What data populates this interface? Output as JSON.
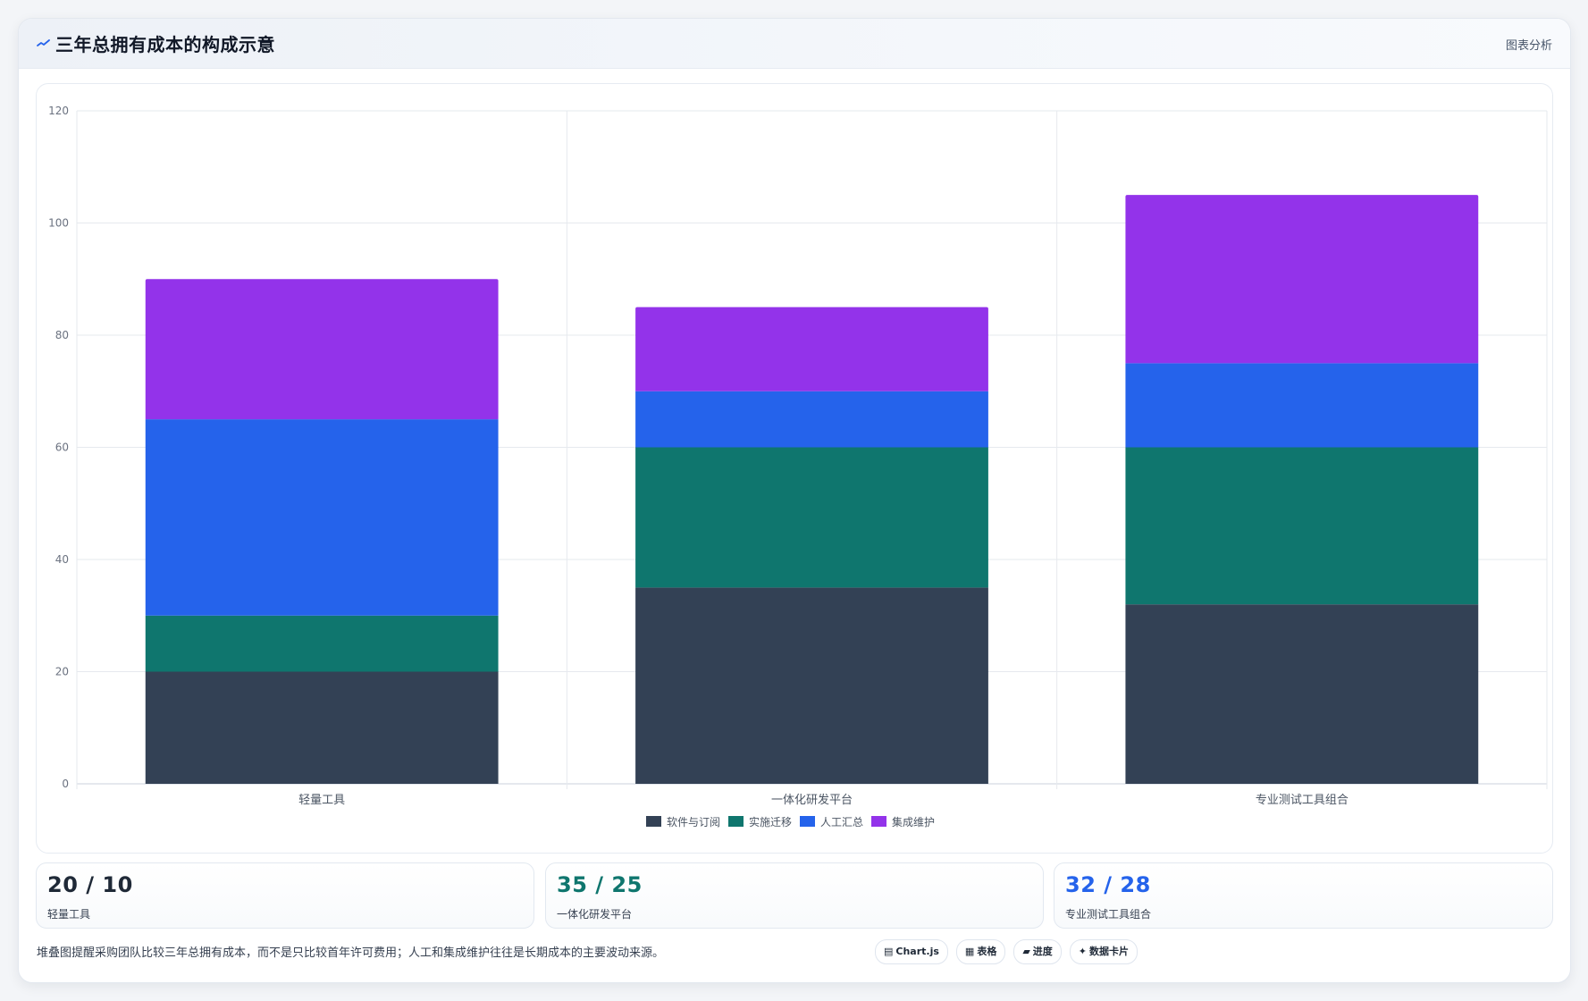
{
  "header": {
    "title": "三年总拥有成本的构成示意",
    "action_label": "图表分析",
    "icon": "trend-line-icon"
  },
  "chart_data": {
    "type": "bar",
    "stacked": true,
    "title": "",
    "xlabel": "",
    "ylabel": "",
    "categories": [
      "轻量工具",
      "一体化研发平台",
      "专业测试工具组合"
    ],
    "series": [
      {
        "name": "软件与订阅",
        "color": "#334155",
        "values": [
          20,
          35,
          32
        ]
      },
      {
        "name": "实施迁移",
        "color": "#0f766e",
        "values": [
          10,
          25,
          28
        ]
      },
      {
        "name": "人工汇总",
        "color": "#2563eb",
        "values": [
          35,
          10,
          15
        ]
      },
      {
        "name": "集成维护",
        "color": "#9333ea",
        "values": [
          25,
          15,
          30
        ]
      }
    ],
    "ylim": [
      0,
      120
    ],
    "yticks": [
      0,
      20,
      40,
      60,
      80,
      100,
      120
    ],
    "grid": true,
    "legend_position": "bottom"
  },
  "stats": [
    {
      "value": "20 / 10",
      "label": "轻量工具",
      "color": "#1f2937"
    },
    {
      "value": "35 / 25",
      "label": "一体化研发平台",
      "color": "#0f766e"
    },
    {
      "value": "32 / 28",
      "label": "专业测试工具组合",
      "color": "#2563eb"
    }
  ],
  "footnote": "堆叠图提醒采购团队比较三年总拥有成本，而不是只比较首年许可费用；人工和集成维护往往是长期成本的主要波动来源。",
  "tags": [
    {
      "icon": "chart-icon",
      "glyph": "▤",
      "label": "Chart.js"
    },
    {
      "icon": "table-icon",
      "glyph": "▦",
      "label": "表格"
    },
    {
      "icon": "progress-icon",
      "glyph": "▰",
      "label": "进度"
    },
    {
      "icon": "sparkle-icon",
      "glyph": "✦",
      "label": "数据卡片"
    }
  ]
}
